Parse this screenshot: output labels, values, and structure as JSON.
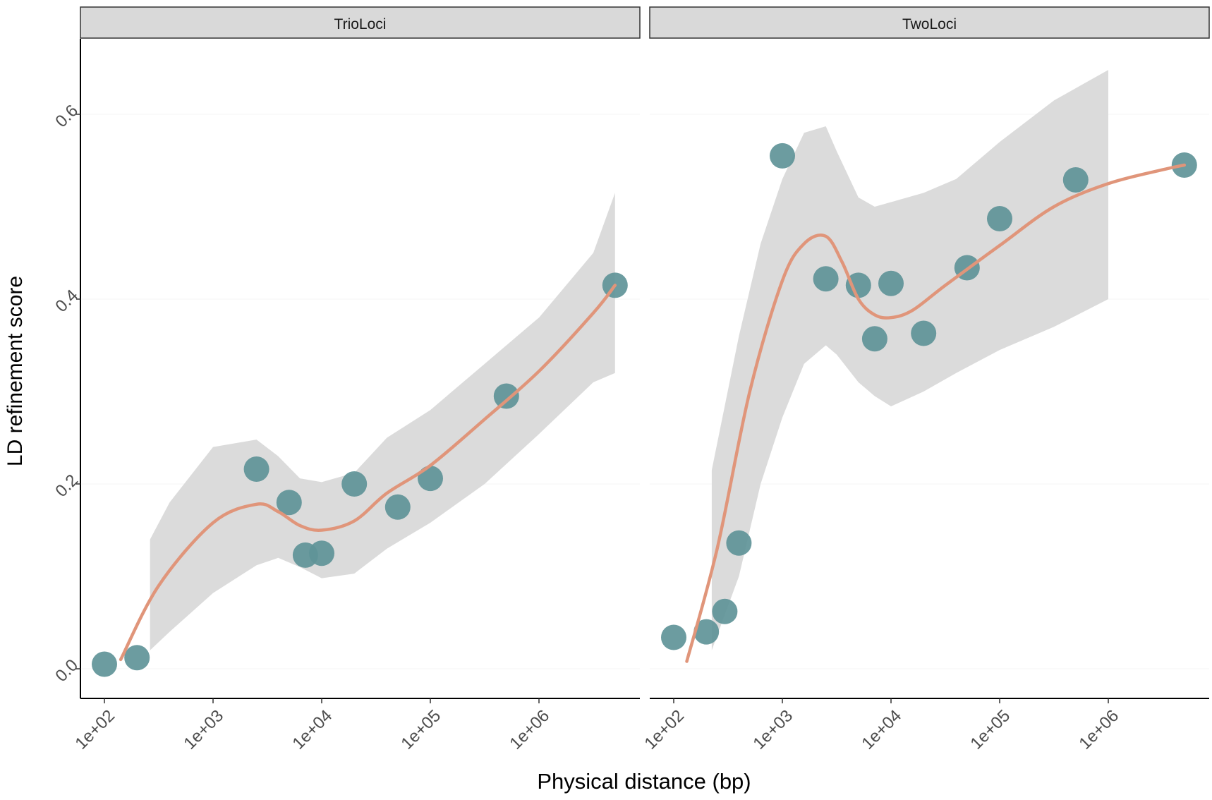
{
  "chart_data": {
    "type": "scatter",
    "ylabel": "LD refinement score",
    "xlabel": "Physical distance (bp)",
    "x_scale": "log10",
    "xlim_log10": [
      1.78,
      6.95
    ],
    "ylim": [
      -0.03,
      0.69
    ],
    "x_ticks": [
      {
        "log10": 2,
        "label": "1e+02"
      },
      {
        "log10": 3,
        "label": "1e+03"
      },
      {
        "log10": 4,
        "label": "1e+04"
      },
      {
        "log10": 5,
        "label": "1e+05"
      },
      {
        "log10": 6,
        "label": "1e+06"
      }
    ],
    "y_ticks": [
      {
        "value": 0.0,
        "label": "0.0"
      },
      {
        "value": 0.2,
        "label": "0.2"
      },
      {
        "value": 0.4,
        "label": "0.4"
      },
      {
        "value": 0.6,
        "label": "0.6"
      }
    ],
    "colors": {
      "point": "#5f9498",
      "smooth": "#e0957a",
      "ribbon": "#d9d9d9",
      "strip": "#d9d9d9",
      "axis": "#000000",
      "tick_text": "#4d4d4d"
    },
    "panels": [
      {
        "name": "TrioLoci",
        "points": [
          {
            "log_x": 2.0,
            "y": 0.005
          },
          {
            "log_x": 2.3,
            "y": 0.012
          },
          {
            "log_x": 3.4,
            "y": 0.216
          },
          {
            "log_x": 3.7,
            "y": 0.18
          },
          {
            "log_x": 3.85,
            "y": 0.123
          },
          {
            "log_x": 4.0,
            "y": 0.125
          },
          {
            "log_x": 4.3,
            "y": 0.2
          },
          {
            "log_x": 4.7,
            "y": 0.175
          },
          {
            "log_x": 5.0,
            "y": 0.206
          },
          {
            "log_x": 5.7,
            "y": 0.295
          },
          {
            "log_x": 6.7,
            "y": 0.415
          }
        ],
        "smooth": {
          "log_x": [
            2.15,
            2.5,
            3.0,
            3.4,
            3.6,
            3.8,
            4.0,
            4.3,
            4.6,
            5.0,
            5.5,
            6.0,
            6.5,
            6.7
          ],
          "y": [
            0.01,
            0.09,
            0.158,
            0.178,
            0.17,
            0.155,
            0.15,
            0.16,
            0.19,
            0.22,
            0.27,
            0.322,
            0.385,
            0.415
          ]
        },
        "ribbon": {
          "log_x": [
            2.42,
            2.6,
            3.0,
            3.4,
            3.6,
            3.8,
            4.0,
            4.3,
            4.6,
            5.0,
            5.5,
            6.0,
            6.5,
            6.7
          ],
          "upper": [
            0.14,
            0.18,
            0.24,
            0.248,
            0.23,
            0.206,
            0.202,
            0.212,
            0.25,
            0.28,
            0.33,
            0.38,
            0.45,
            0.515
          ],
          "lower": [
            0.02,
            0.04,
            0.082,
            0.112,
            0.12,
            0.11,
            0.098,
            0.103,
            0.13,
            0.158,
            0.2,
            0.254,
            0.31,
            0.32
          ]
        }
      },
      {
        "name": "TwoLoci",
        "points": [
          {
            "log_x": 2.0,
            "y": 0.034
          },
          {
            "log_x": 2.3,
            "y": 0.04
          },
          {
            "log_x": 2.47,
            "y": 0.062
          },
          {
            "log_x": 2.6,
            "y": 0.136
          },
          {
            "log_x": 3.0,
            "y": 0.555
          },
          {
            "log_x": 3.4,
            "y": 0.422
          },
          {
            "log_x": 3.7,
            "y": 0.415
          },
          {
            "log_x": 3.85,
            "y": 0.357
          },
          {
            "log_x": 4.0,
            "y": 0.417
          },
          {
            "log_x": 4.3,
            "y": 0.363
          },
          {
            "log_x": 4.7,
            "y": 0.434
          },
          {
            "log_x": 5.0,
            "y": 0.487
          },
          {
            "log_x": 5.7,
            "y": 0.529
          },
          {
            "log_x": 6.7,
            "y": 0.545
          }
        ],
        "smooth": {
          "log_x": [
            2.12,
            2.4,
            2.7,
            3.0,
            3.2,
            3.4,
            3.55,
            3.7,
            3.85,
            4.0,
            4.2,
            4.5,
            5.0,
            5.5,
            6.0,
            6.5,
            6.7
          ],
          "y": [
            0.008,
            0.13,
            0.3,
            0.42,
            0.46,
            0.468,
            0.44,
            0.4,
            0.383,
            0.38,
            0.388,
            0.415,
            0.458,
            0.5,
            0.525,
            0.54,
            0.545
          ]
        },
        "ribbon": {
          "log_x": [
            2.35,
            2.6,
            2.8,
            3.0,
            3.2,
            3.4,
            3.5,
            3.7,
            3.85,
            4.0,
            4.3,
            4.6,
            5.0,
            5.5,
            6.0
          ],
          "upper": [
            0.215,
            0.36,
            0.46,
            0.53,
            0.58,
            0.587,
            0.56,
            0.51,
            0.5,
            0.505,
            0.515,
            0.53,
            0.57,
            0.615,
            0.648
          ],
          "lower": [
            0.02,
            0.1,
            0.2,
            0.272,
            0.33,
            0.35,
            0.34,
            0.31,
            0.295,
            0.284,
            0.3,
            0.32,
            0.345,
            0.37,
            0.4
          ]
        }
      }
    ]
  }
}
